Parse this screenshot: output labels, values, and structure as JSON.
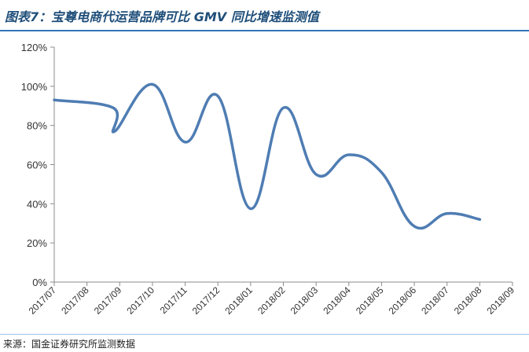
{
  "header": {
    "title": "图表7：宝尊电商代运营品牌可比 GMV 同比增速监测值"
  },
  "footer": {
    "source": "来源：国金证券研究所监测数据"
  },
  "chart_data": {
    "type": "line",
    "title": "",
    "xlabel": "",
    "ylabel": "",
    "categories": [
      "2017/07",
      "2017/08",
      "2017/09",
      "2017/10",
      "2017/11",
      "2017/12",
      "2018/01",
      "2018/02",
      "2018/03",
      "2018/04",
      "2018/05",
      "2018/06",
      "2018/07",
      "2018/08",
      "2018/09"
    ],
    "y_tick_labels": [
      "0%",
      "20%",
      "40%",
      "60%",
      "80%",
      "100%",
      "120%"
    ],
    "y_ticks": [
      0,
      20,
      40,
      60,
      80,
      100,
      120
    ],
    "ylim": [
      0,
      120
    ],
    "grid": false,
    "legend": "none",
    "line_color": "#4f7db3",
    "series": [
      {
        "values": [
          [
            0,
            93
          ],
          [
            1.8,
            89
          ],
          [
            1.85,
            77
          ],
          [
            3,
            101
          ],
          [
            4,
            71.5
          ],
          [
            5,
            95
          ],
          [
            6,
            37.5
          ],
          [
            7,
            89
          ],
          [
            8,
            55
          ],
          [
            9,
            65
          ],
          [
            10,
            56
          ],
          [
            11,
            28.5
          ],
          [
            12,
            35
          ],
          [
            13,
            32
          ]
        ]
      }
    ]
  }
}
